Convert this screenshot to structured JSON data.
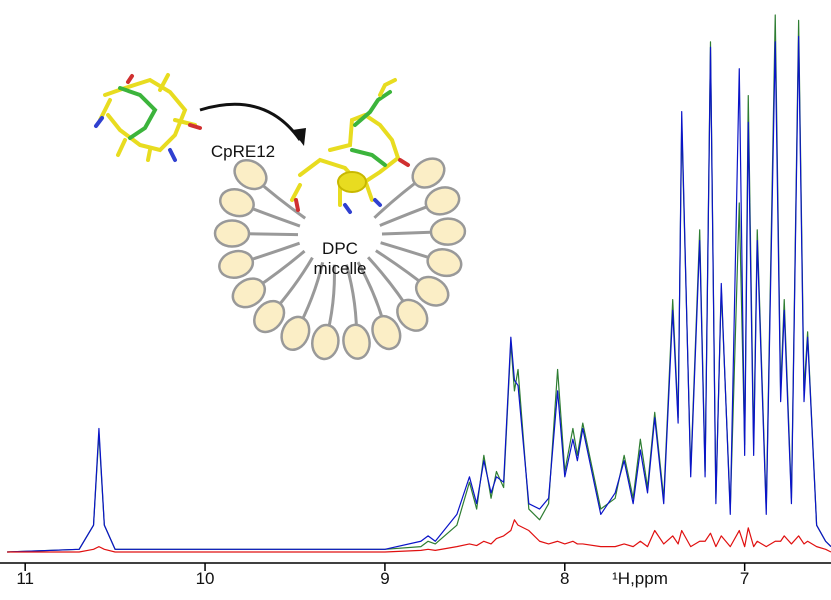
{
  "chart_data": {
    "type": "line",
    "xlabel": "¹H,ppm",
    "annotations": {
      "peptide": "CpRE12",
      "micelle_line1": "DPC",
      "micelle_line2": "micelle"
    },
    "xlim": [
      11.14,
      6.52
    ],
    "ylim": [
      0,
      100
    ],
    "xticks": [
      11,
      10,
      9,
      8,
      7
    ],
    "x": [
      11.1,
      10.7,
      10.62,
      10.59,
      10.56,
      10.5,
      9.0,
      8.8,
      8.76,
      8.72,
      8.6,
      8.53,
      8.49,
      8.45,
      8.41,
      8.38,
      8.34,
      8.3,
      8.28,
      8.26,
      8.2,
      8.14,
      8.09,
      8.04,
      8.0,
      7.955,
      7.93,
      7.9,
      7.8,
      7.72,
      7.67,
      7.62,
      7.58,
      7.54,
      7.5,
      7.45,
      7.4,
      7.37,
      7.35,
      7.3,
      7.25,
      7.22,
      7.19,
      7.16,
      7.13,
      7.08,
      7.03,
      7.0,
      6.98,
      6.95,
      6.93,
      6.88,
      6.83,
      6.8,
      6.78,
      6.74,
      6.7,
      6.67,
      6.65,
      6.6,
      6.55,
      6.52
    ],
    "series": [
      {
        "color": "#2e7d32",
        "values": [
          0,
          0.5,
          5,
          22,
          5,
          0.5,
          0.5,
          1,
          2,
          1.5,
          5,
          13,
          8,
          18,
          10,
          15,
          12,
          39,
          30,
          34,
          8,
          6,
          9,
          34,
          15,
          23,
          18,
          24,
          8,
          10,
          18,
          10,
          21,
          12,
          26,
          10,
          47,
          25,
          80,
          15,
          60,
          15,
          95,
          10,
          49,
          8,
          65,
          20,
          85,
          20,
          60,
          8,
          100,
          30,
          47,
          10,
          99,
          30,
          41,
          5,
          2,
          1
        ]
      },
      {
        "color": "#0a14c8",
        "values": [
          0,
          0.5,
          5,
          23,
          5,
          0.5,
          0.5,
          2,
          3,
          2,
          7,
          14,
          9,
          17,
          11,
          14,
          13,
          40,
          32,
          31,
          9,
          8,
          10,
          30,
          14,
          21,
          17,
          23,
          7,
          11,
          17,
          9,
          19,
          11,
          25,
          9,
          45,
          24,
          82,
          14,
          58,
          14,
          94,
          9,
          50,
          7,
          90,
          18,
          80,
          18,
          58,
          7,
          95,
          28,
          45,
          9,
          96,
          28,
          40,
          5,
          2,
          1
        ]
      },
      {
        "color": "#e01010",
        "values": [
          0,
          0,
          0.5,
          1,
          0.5,
          0,
          0,
          0.3,
          0.5,
          0.3,
          1,
          1.5,
          1.2,
          2,
          1.5,
          2.5,
          3,
          4,
          6,
          5,
          4,
          2,
          1.5,
          2,
          1.5,
          2,
          1.5,
          1.5,
          1,
          1,
          1.5,
          1,
          2,
          1,
          4,
          1.5,
          3,
          1.5,
          4,
          1,
          2,
          2,
          3.5,
          1,
          3,
          1,
          4,
          1,
          4.5,
          1,
          2,
          1,
          2,
          2,
          3,
          1.5,
          3,
          1.5,
          2,
          1,
          0.5,
          0
        ]
      }
    ]
  }
}
